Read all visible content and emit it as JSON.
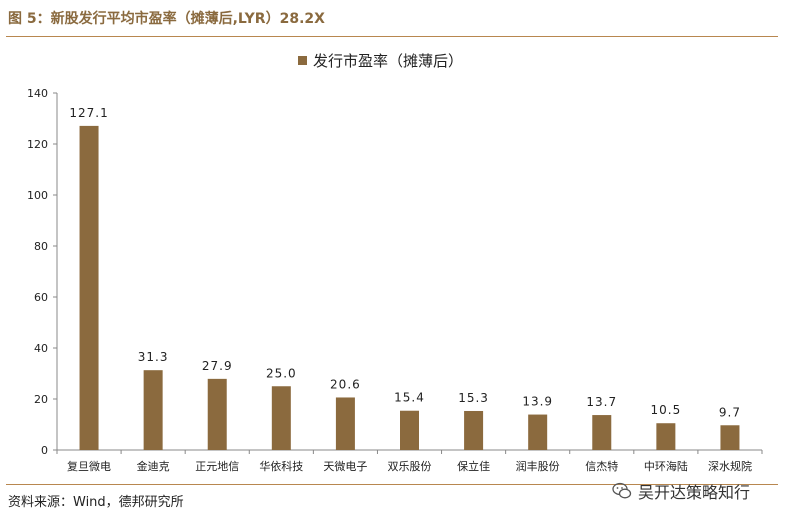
{
  "figure": {
    "title": "图 5：新股发行平均市盈率（摊薄后,LYR）28.2X",
    "source": "资料来源：Wind，德邦研究所",
    "watermark": "吴开达策略知行"
  },
  "colors": {
    "bar": "#8b6a3e",
    "rule": "#b8874f",
    "title": "#8a6a3f"
  },
  "chart_data": {
    "type": "bar",
    "title": "",
    "legend": "发行市盈率（摊薄后）",
    "legend_position": "top-center",
    "categories": [
      "复旦微电",
      "金迪克",
      "正元地信",
      "华依科技",
      "天微电子",
      "双乐股份",
      "保立佳",
      "润丰股份",
      "信杰特",
      "中环海陆",
      "深水规院"
    ],
    "values": [
      127.1,
      31.3,
      27.9,
      25.0,
      20.6,
      15.4,
      15.3,
      13.9,
      13.7,
      10.5,
      9.7
    ],
    "value_labels": [
      "127.1",
      "31.3",
      "27.9",
      "25.0",
      "20.6",
      "15.4",
      "15.3",
      "13.9",
      "13.7",
      "10.5",
      "9.7"
    ],
    "ylim": [
      0,
      140
    ],
    "yticks": [
      0,
      20,
      40,
      60,
      80,
      100,
      120,
      140
    ],
    "xlabel": "",
    "ylabel": "",
    "grid": false
  }
}
